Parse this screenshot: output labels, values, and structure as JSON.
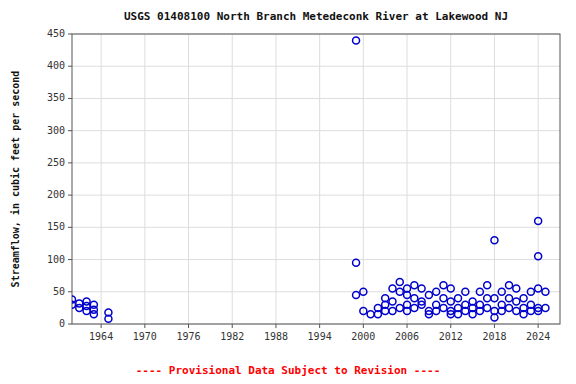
{
  "chart_data": {
    "type": "scatter",
    "title": "USGS 01408100 North Branch Metedeconk River at Lakewood NJ",
    "y_label": "Streamflow, in cubic feet per second",
    "annotations": [
      "---- Provisional Data Subject to Revision ----"
    ],
    "x": [
      1960,
      1960,
      1961,
      1961,
      1962,
      1962,
      1962,
      1963,
      1963,
      1963,
      1965,
      1965,
      1999,
      1999,
      1999,
      2000,
      2000,
      2001,
      2002,
      2002,
      2003,
      2003,
      2003,
      2004,
      2004,
      2004,
      2005,
      2005,
      2005,
      2006,
      2006,
      2006,
      2006,
      2007,
      2007,
      2007,
      2008,
      2008,
      2008,
      2009,
      2009,
      2009,
      2010,
      2010,
      2010,
      2011,
      2011,
      2011,
      2012,
      2012,
      2012,
      2012,
      2013,
      2013,
      2013,
      2014,
      2014,
      2014,
      2015,
      2015,
      2015,
      2016,
      2016,
      2016,
      2017,
      2017,
      2017,
      2018,
      2018,
      2018,
      2018,
      2019,
      2019,
      2019,
      2020,
      2020,
      2020,
      2021,
      2021,
      2021,
      2022,
      2022,
      2022,
      2023,
      2023,
      2023,
      2024,
      2024,
      2024,
      2024,
      2024,
      2025,
      2025
    ],
    "values": [
      30,
      38,
      25,
      32,
      20,
      28,
      35,
      15,
      22,
      30,
      8,
      18,
      440,
      95,
      45,
      20,
      50,
      15,
      25,
      15,
      30,
      20,
      40,
      20,
      35,
      55,
      50,
      65,
      25,
      45,
      30,
      20,
      55,
      40,
      60,
      25,
      30,
      55,
      35,
      20,
      45,
      15,
      30,
      50,
      20,
      40,
      60,
      25,
      35,
      55,
      20,
      15,
      25,
      40,
      15,
      30,
      50,
      20,
      25,
      35,
      15,
      30,
      50,
      20,
      40,
      60,
      25,
      130,
      40,
      20,
      10,
      30,
      50,
      20,
      40,
      60,
      25,
      35,
      55,
      20,
      25,
      40,
      15,
      30,
      50,
      20,
      105,
      160,
      20,
      55,
      25,
      50,
      25
    ],
    "color": "#0000cc",
    "marker": "circle",
    "xlim": [
      1960,
      2027
    ],
    "ylim": [
      0,
      450
    ],
    "xticks": [
      1964,
      1970,
      1976,
      1982,
      1988,
      1994,
      2000,
      2006,
      2012,
      2018,
      2024
    ],
    "yticks": [
      0,
      50,
      100,
      150,
      200,
      250,
      300,
      350,
      400,
      450
    ],
    "grid": true
  }
}
